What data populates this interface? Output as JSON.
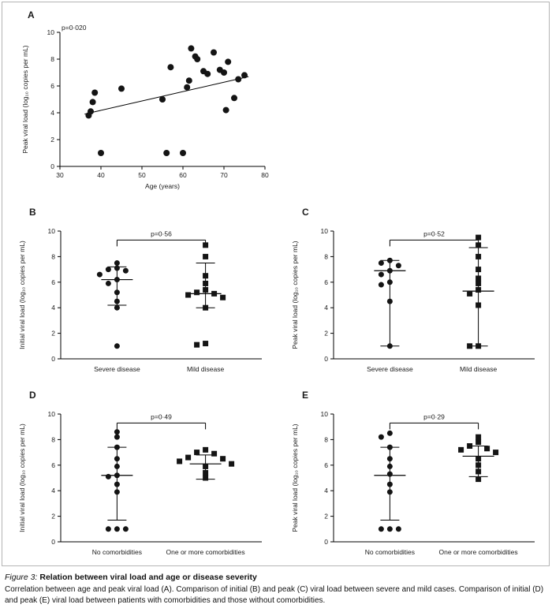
{
  "caption": {
    "label": "Figure 3:",
    "title": "Relation between viral load and age or disease severity",
    "body": "Correlation between age and peak viral load (A). Comparison of initial (B) and peak (C) viral load between severe and mild cases. Comparison of initial (D) and peak (E) viral load between patients with comorbidities and those without comorbidities."
  },
  "chart_data": [
    {
      "panel": "A",
      "type": "scatter",
      "p_value": "p=0·020",
      "xlabel": "Age (years)",
      "ylabel": "Peak viral load (log₁₀ copies per mL)",
      "xlim": [
        30,
        80
      ],
      "ylim": [
        0,
        10
      ],
      "xticks": [
        30,
        40,
        50,
        60,
        70,
        80
      ],
      "yticks": [
        0,
        2,
        4,
        6,
        8,
        10
      ],
      "points": [
        [
          37,
          3.8
        ],
        [
          37.5,
          4.1
        ],
        [
          38,
          4.8
        ],
        [
          38.5,
          5.5
        ],
        [
          40,
          1.0
        ],
        [
          45,
          5.8
        ],
        [
          55,
          5.0
        ],
        [
          56,
          1.0
        ],
        [
          57,
          7.4
        ],
        [
          60,
          1.0
        ],
        [
          61,
          5.9
        ],
        [
          61.5,
          6.4
        ],
        [
          62,
          8.8
        ],
        [
          63,
          8.2
        ],
        [
          63.5,
          8.0
        ],
        [
          65,
          7.1
        ],
        [
          66,
          6.9
        ],
        [
          67.5,
          8.5
        ],
        [
          69,
          7.2
        ],
        [
          70,
          7.0
        ],
        [
          70.5,
          4.2
        ],
        [
          71,
          7.8
        ],
        [
          72.5,
          5.1
        ],
        [
          73.5,
          6.5
        ],
        [
          75,
          6.8
        ]
      ],
      "trendline": {
        "x": [
          36,
          76
        ],
        "y": [
          3.9,
          6.7
        ]
      }
    },
    {
      "panel": "B",
      "type": "scatter-category",
      "p_value": "p=0·56",
      "ylabel": "Initial viral load (log₁₀ copies per mL)",
      "ylim": [
        0,
        10
      ],
      "yticks": [
        0,
        2,
        4,
        6,
        8,
        10
      ],
      "bracket_y": 9.3,
      "groups": [
        {
          "label": "Severe disease",
          "marker": "circle",
          "values": [
            7.5,
            7.1,
            7.0,
            6.9,
            6.6,
            6.2,
            5.9,
            5.2,
            4.5,
            4.0,
            1.0
          ],
          "mean": 6.2,
          "upper": 7.2,
          "lower": 4.2
        },
        {
          "label": "Mild disease",
          "marker": "square",
          "values": [
            8.9,
            8.0,
            6.5,
            5.9,
            5.4,
            5.2,
            5.1,
            5.0,
            4.8,
            4.0,
            1.2,
            1.1
          ],
          "mean": 5.1,
          "upper": 7.5,
          "lower": 4.0
        }
      ]
    },
    {
      "panel": "C",
      "type": "scatter-category",
      "p_value": "p=0·52",
      "ylabel": "Peak viral load (log₁₀ copies per mL)",
      "ylim": [
        0,
        10
      ],
      "yticks": [
        0,
        2,
        4,
        6,
        8,
        10
      ],
      "bracket_y": 9.3,
      "groups": [
        {
          "label": "Severe disease",
          "marker": "circle",
          "values": [
            7.7,
            7.5,
            7.3,
            6.9,
            6.6,
            6.0,
            5.8,
            4.5,
            1.0
          ],
          "mean": 6.9,
          "upper": 7.7,
          "lower": 1.0
        },
        {
          "label": "Mild disease",
          "marker": "square",
          "values": [
            9.5,
            8.9,
            8.0,
            7.0,
            6.3,
            5.9,
            5.4,
            5.1,
            4.2,
            1.0,
            1.0
          ],
          "mean": 5.3,
          "upper": 8.7,
          "lower": 1.0
        }
      ]
    },
    {
      "panel": "D",
      "type": "scatter-category",
      "p_value": "p=0·49",
      "ylabel": "Initial viral load (log₁₀ copies per mL)",
      "ylim": [
        0,
        10
      ],
      "yticks": [
        0,
        2,
        4,
        6,
        8,
        10
      ],
      "bracket_y": 9.3,
      "groups": [
        {
          "label": "No comorbidities",
          "marker": "circle",
          "values": [
            8.6,
            8.2,
            7.4,
            6.5,
            5.9,
            5.2,
            5.1,
            4.5,
            3.9,
            1.0,
            1.0,
            1.0
          ],
          "mean": 5.2,
          "upper": 7.4,
          "lower": 1.7
        },
        {
          "label": "One or more comorbidities",
          "marker": "square",
          "values": [
            7.2,
            7.0,
            6.9,
            6.6,
            6.5,
            6.3,
            6.1,
            5.9,
            5.4,
            5.0
          ],
          "mean": 6.1,
          "upper": 6.8,
          "lower": 4.9
        }
      ]
    },
    {
      "panel": "E",
      "type": "scatter-category",
      "p_value": "p=0·29",
      "ylabel": "Peak viral load (log₁₀ copies per mL)",
      "ylim": [
        0,
        10
      ],
      "yticks": [
        0,
        2,
        4,
        6,
        8,
        10
      ],
      "bracket_y": 9.3,
      "groups": [
        {
          "label": "No comorbidities",
          "marker": "circle",
          "values": [
            8.5,
            8.2,
            7.4,
            6.5,
            5.9,
            5.3,
            4.5,
            3.9,
            1.0,
            1.0,
            1.0
          ],
          "mean": 5.2,
          "upper": 7.4,
          "lower": 1.7
        },
        {
          "label": "One or more comorbidities",
          "marker": "square",
          "values": [
            8.2,
            7.8,
            7.5,
            7.3,
            7.2,
            7.0,
            6.5,
            6.0,
            5.5,
            4.9
          ],
          "mean": 6.7,
          "upper": 7.5,
          "lower": 5.1
        }
      ]
    }
  ]
}
